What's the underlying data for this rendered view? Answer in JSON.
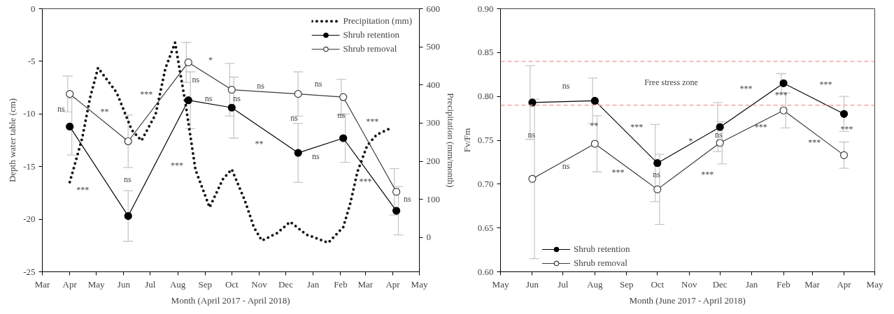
{
  "chart_data": [
    {
      "type": "line",
      "xlabel": "Month (April 2017 - April 2018)",
      "ylabel": "Depth water table (cm)",
      "y2label": "Precipitation (mm/month)",
      "xlim": [
        "2017-03-01",
        "2018-05-01"
      ],
      "xticks": [
        {
          "value": "2017-03-01",
          "label": "Mar"
        },
        {
          "value": "2017-04-01",
          "label": "Apr"
        },
        {
          "value": "2017-05-01",
          "label": "May"
        },
        {
          "value": "2017-06-01",
          "label": "Jun"
        },
        {
          "value": "2017-07-01",
          "label": "Jul"
        },
        {
          "value": "2017-08-01",
          "label": "Aug"
        },
        {
          "value": "2017-09-01",
          "label": "Sep"
        },
        {
          "value": "2017-10-01",
          "label": "Oct"
        },
        {
          "value": "2017-11-01",
          "label": "Nov"
        },
        {
          "value": "2017-12-01",
          "label": "Dec"
        },
        {
          "value": "2018-01-01",
          "label": "Jan"
        },
        {
          "value": "2018-02-01",
          "label": "Feb"
        },
        {
          "value": "2018-03-01",
          "label": "Mar"
        },
        {
          "value": "2018-04-01",
          "label": "Apr"
        },
        {
          "value": "2018-05-01",
          "label": "May"
        }
      ],
      "ylim": [
        -25,
        0
      ],
      "yticks": [
        -25,
        -20,
        -15,
        -10,
        -5,
        0
      ],
      "y2lim": [
        -90,
        600
      ],
      "y2ticks": [
        0,
        100,
        200,
        300,
        400,
        500,
        600
      ],
      "legend": "top right",
      "marker": "circle",
      "line_style": "solid",
      "series": [
        {
          "name": "Precipitation (mm)",
          "axis": "y2",
          "marker": "none",
          "line_style": "dotted",
          "color": "#141414",
          "x": [
            "2017-04-01",
            "2017-04-15",
            "2017-04-24",
            "2017-05-03",
            "2017-05-24",
            "2017-06-10",
            "2017-06-21",
            "2017-07-07",
            "2017-07-18",
            "2017-07-29",
            "2017-08-10",
            "2017-08-21",
            "2017-09-06",
            "2017-09-21",
            "2017-10-01",
            "2017-10-16",
            "2017-10-26",
            "2017-11-04",
            "2017-11-21",
            "2017-12-06",
            "2017-12-24",
            "2018-01-18",
            "2018-02-04",
            "2018-02-12",
            "2018-02-20",
            "2018-03-03",
            "2018-03-14",
            "2018-03-30"
          ],
          "values": [
            145,
            260,
            367,
            445,
            380,
            282,
            254,
            323,
            443,
            511,
            348,
            178,
            79,
            153,
            179,
            96,
            27,
            -8,
            11,
            41,
            8,
            -14,
            27,
            90,
            172,
            241,
            270,
            287
          ]
        },
        {
          "name": "Shrub retention",
          "color": "#000000",
          "x": [
            "2017-04-01",
            "2017-06-06",
            "2017-08-13",
            "2017-10-01",
            "2017-12-15",
            "2018-02-04",
            "2018-04-05"
          ],
          "values": [
            -11.2,
            -19.7,
            -8.7,
            -9.4,
            -13.7,
            -12.3,
            -19.2
          ],
          "errors": [
            2.7,
            2.4,
            2.7,
            2.9,
            2.8,
            2.3,
            2.3
          ]
        },
        {
          "name": "Shrub removal",
          "color": "#3a3a3a",
          "x": [
            "2017-04-01",
            "2017-06-06",
            "2017-08-13",
            "2017-10-01",
            "2017-12-15",
            "2018-02-04",
            "2018-04-05"
          ],
          "values": [
            -8.1,
            -12.6,
            -5.1,
            -7.7,
            -8.1,
            -8.4,
            -17.4
          ],
          "errors": [
            1.7,
            2.5,
            1.9,
            2.5,
            2.1,
            1.7,
            2.2
          ]
        }
      ],
      "annotations": [
        "ns",
        "**",
        "***",
        "***",
        "ns",
        "***",
        "ns",
        "ns",
        "*",
        "ns",
        "ns",
        "**",
        "ns",
        "ns",
        "ns",
        "ns",
        "***",
        "***",
        "ns"
      ]
    },
    {
      "type": "line",
      "xlabel": "Month (June 2017 - April 2018)",
      "ylabel": "Fv/Fm",
      "xlim": [
        "2017-05-01",
        "2018-05-01"
      ],
      "xticks": [
        {
          "value": "2017-05-01",
          "label": "May"
        },
        {
          "value": "2017-06-01",
          "label": "Jun"
        },
        {
          "value": "2017-07-01",
          "label": "Jul"
        },
        {
          "value": "2017-08-01",
          "label": "Aug"
        },
        {
          "value": "2017-09-01",
          "label": "Sep"
        },
        {
          "value": "2017-10-01",
          "label": "Oct"
        },
        {
          "value": "2017-11-01",
          "label": "Nov"
        },
        {
          "value": "2017-12-01",
          "label": "Dec"
        },
        {
          "value": "2018-01-01",
          "label": "Jan"
        },
        {
          "value": "2018-02-01",
          "label": "Feb"
        },
        {
          "value": "2018-03-01",
          "label": "Mar"
        },
        {
          "value": "2018-04-01",
          "label": "Apr"
        },
        {
          "value": "2018-05-01",
          "label": "May"
        }
      ],
      "ylim": [
        0.6,
        0.9
      ],
      "yticks": [
        {
          "value": 0.6,
          "label": "0.60"
        },
        {
          "value": 0.65,
          "label": "0.65"
        },
        {
          "value": 0.7,
          "label": "0.70"
        },
        {
          "value": 0.75,
          "label": "0.75"
        },
        {
          "value": 0.8,
          "label": "0.80"
        },
        {
          "value": 0.85,
          "label": "0.85"
        },
        {
          "value": 0.9,
          "label": "0.90"
        }
      ],
      "legend": "bottom left",
      "marker": "circle",
      "line_style": "solid",
      "ref_lines": [
        {
          "axis": "y",
          "value": 0.84,
          "color": "#f4a6a6",
          "line_style": "dashed"
        },
        {
          "axis": "y",
          "value": 0.79,
          "color": "#f4a6a6",
          "line_style": "dashed"
        }
      ],
      "x": [
        "2017-06-01",
        "2017-08-01",
        "2017-10-01",
        "2017-12-01",
        "2018-02-01",
        "2018-04-01"
      ],
      "series": [
        {
          "name": "Shrub retention",
          "color": "#000000",
          "values": [
            0.793,
            0.795,
            0.724,
            0.765,
            0.815,
            0.78
          ],
          "errors": [
            0.042,
            0.026,
            0.044,
            0.028,
            0.011,
            0.02
          ]
        },
        {
          "name": "Shrub removal",
          "color": "#3a3a3a",
          "values": [
            0.706,
            0.746,
            0.694,
            0.747,
            0.784,
            0.733
          ],
          "errors": [
            0.091,
            0.032,
            0.04,
            0.024,
            0.02,
            0.015
          ]
        }
      ],
      "annotations": [
        "Free stress zone",
        "ns",
        "ns",
        "**",
        "ns",
        "***",
        "***",
        "ns",
        "*",
        "***",
        "ns",
        "***",
        "***",
        "***",
        "***",
        "***",
        "***"
      ]
    }
  ]
}
